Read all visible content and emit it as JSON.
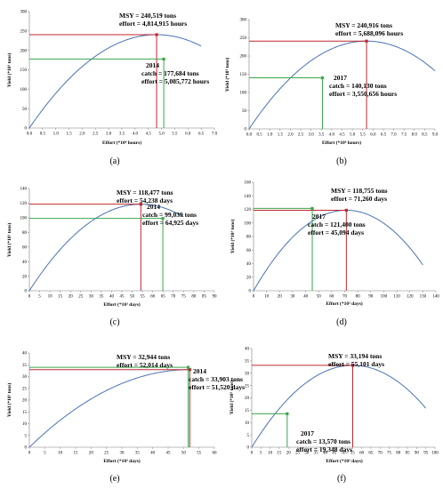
{
  "chart_data": [
    {
      "id": "a",
      "type": "line",
      "panel_label": "(a)",
      "xlabel": "Effort (*10⁶ hours)",
      "ylabel": "Yield (*10³ tons)",
      "xlim": [
        0,
        7.0
      ],
      "ylim": [
        0,
        300
      ],
      "xticks": [
        0,
        0.5,
        1,
        1.5,
        2,
        2.5,
        3,
        3.5,
        4,
        4.5,
        5,
        5.5,
        6,
        6.5,
        7
      ],
      "xtick_labels": [
        "0.0",
        "0.5",
        "1.0",
        "1.5",
        "2.0",
        "2.5",
        "3.0",
        "3.5",
        "4.0",
        "4.5",
        "5.0",
        "5.5",
        "6.0",
        "6.5",
        "7.0"
      ],
      "yticks": [
        0,
        50,
        100,
        150,
        200,
        250,
        300
      ],
      "ytick_labels": [
        "0",
        "50",
        "100",
        "150",
        "200",
        "250",
        "300"
      ],
      "curve": {
        "msy": 240.519,
        "emsy": 4.814915,
        "xmax": 6.5
      },
      "msy_point": {
        "x": 4.814915,
        "y": 240.519
      },
      "obs_point": {
        "x": 5.085772,
        "y": 177.684
      },
      "msy_lines": [
        "MSY = 240,519 tons",
        "effort = 4,814,915 hours"
      ],
      "obs_year": "2014",
      "obs_lines": [
        "catch = 177,684 tons",
        "effort = 5,085,772 hours"
      ]
    },
    {
      "id": "b",
      "type": "line",
      "panel_label": "(b)",
      "xlabel": "Effort (*10⁶ hours)",
      "ylabel": "Yield (*10³ tons)",
      "xlim": [
        0,
        9.0
      ],
      "ylim": [
        0,
        300
      ],
      "xticks": [
        0,
        0.5,
        1,
        1.5,
        2,
        2.5,
        3,
        3.5,
        4,
        4.5,
        5,
        5.5,
        6,
        6.5,
        7,
        7.5,
        8,
        8.5,
        9
      ],
      "xtick_labels": [
        "0.0",
        "0.5",
        "1.0",
        "1.5",
        "2.0",
        "2.5",
        "3.0",
        "3.5",
        "4.0",
        "4.5",
        "5.0",
        "5.5",
        "6.0",
        "6.5",
        "7.0",
        "7.5",
        "8.0",
        "8.5",
        "9.0"
      ],
      "yticks": [
        0,
        50,
        100,
        150,
        200,
        250,
        300
      ],
      "ytick_labels": [
        "0",
        "50",
        "100",
        "150",
        "200",
        "250",
        "300"
      ],
      "curve": {
        "msy": 240.916,
        "emsy": 5.688096,
        "xmax": 9.0
      },
      "msy_point": {
        "x": 5.688096,
        "y": 240.916
      },
      "obs_point": {
        "x": 3.550656,
        "y": 140.13
      },
      "msy_lines": [
        "MSY = 240,916 tons",
        "effort = 5,688,096 hours"
      ],
      "obs_year": "2017",
      "obs_lines": [
        "catch = 140,130 tons",
        "effort = 3,550,656 hours"
      ]
    },
    {
      "id": "c",
      "type": "line",
      "panel_label": "(c)",
      "xlabel": "Effort (*10³ days)",
      "ylabel": "Yield (*10³ tons)",
      "xlim": [
        0,
        90
      ],
      "ylim": [
        0,
        140
      ],
      "xticks": [
        0,
        5,
        10,
        15,
        20,
        25,
        30,
        35,
        40,
        45,
        50,
        55,
        60,
        65,
        70,
        75,
        80,
        85,
        90
      ],
      "xtick_labels": [
        "0",
        "5",
        "10",
        "15",
        "20",
        "25",
        "30",
        "35",
        "40",
        "45",
        "50",
        "55",
        "60",
        "65",
        "70",
        "75",
        "80",
        "85",
        "90"
      ],
      "yticks": [
        0,
        20,
        40,
        60,
        80,
        100,
        120,
        140
      ],
      "ytick_labels": [
        "0",
        "20",
        "40",
        "60",
        "80",
        "100",
        "120",
        "140"
      ],
      "curve": {
        "msy": 118.477,
        "emsy": 54.238,
        "xmax": 75
      },
      "msy_point": {
        "x": 54.238,
        "y": 118.477
      },
      "obs_point": {
        "x": 64.925,
        "y": 99.039
      },
      "msy_lines": [
        "MSY = 118,477 tons",
        "effort = 54,238 days"
      ],
      "obs_year": "2014",
      "obs_lines": [
        "catch = 99,039 tons",
        "effort = 64,925 days"
      ]
    },
    {
      "id": "d",
      "type": "line",
      "panel_label": "(d)",
      "xlabel": "Effort (*10³ days)",
      "ylabel": "Yield (*10³ tons)",
      "xlim": [
        0,
        140
      ],
      "ylim": [
        0,
        160
      ],
      "xticks": [
        0,
        10,
        20,
        30,
        40,
        50,
        60,
        70,
        80,
        90,
        100,
        110,
        120,
        130,
        140
      ],
      "xtick_labels": [
        "0",
        "10",
        "20",
        "30",
        "40",
        "50",
        "60",
        "70",
        "80",
        "90",
        "100",
        "110",
        "120",
        "130",
        "140"
      ],
      "yticks": [
        0,
        20,
        40,
        60,
        80,
        100,
        120,
        140,
        160
      ],
      "ytick_labels": [
        "0",
        "20",
        "40",
        "60",
        "80",
        "100",
        "120",
        "140",
        "160"
      ],
      "curve": {
        "msy": 118.755,
        "emsy": 71.26,
        "xmax": 130
      },
      "msy_point": {
        "x": 71.26,
        "y": 118.755
      },
      "obs_point": {
        "x": 45.094,
        "y": 121.4
      },
      "msy_lines": [
        "MSY = 118,755 tons",
        "effort = 71,260 days"
      ],
      "obs_year": "2017",
      "obs_lines": [
        "catch = 121,400 tons",
        "effort = 45,094 days"
      ]
    },
    {
      "id": "e",
      "type": "line",
      "panel_label": "(e)",
      "xlabel": "Effort (*10³ days)",
      "ylabel": "Yield (*10³ tons)",
      "xlim": [
        0,
        60
      ],
      "ylim": [
        0,
        40
      ],
      "xticks": [
        0,
        5,
        10,
        15,
        20,
        25,
        30,
        35,
        40,
        45,
        50,
        55,
        60
      ],
      "xtick_labels": [
        "0",
        "5",
        "10",
        "15",
        "20",
        "25",
        "30",
        "35",
        "40",
        "45",
        "50",
        "55",
        "60"
      ],
      "yticks": [
        0,
        5,
        10,
        15,
        20,
        25,
        30,
        35,
        40
      ],
      "ytick_labels": [
        "0",
        "5",
        "10",
        "15",
        "20",
        "25",
        "30",
        "35",
        "40"
      ],
      "curve": {
        "msy": 32.944,
        "emsy": 52.014,
        "xmax": 52.014
      },
      "msy_point": {
        "x": 52.014,
        "y": 32.944
      },
      "obs_point": {
        "x": 51.52,
        "y": 33.903
      },
      "msy_lines": [
        "MSY = 32,944 tons",
        "effort = 52,014 days"
      ],
      "obs_year": "2014",
      "obs_lines": [
        "catch = 33,903 tons",
        "effort = 51,520 days"
      ]
    },
    {
      "id": "f",
      "type": "line",
      "panel_label": "(f)",
      "xlabel": "Effort (*10³ days)",
      "ylabel": "Yield (*10³ tons)",
      "xlim": [
        0,
        100
      ],
      "ylim": [
        0,
        40
      ],
      "xticks": [
        0,
        5,
        10,
        15,
        20,
        25,
        30,
        35,
        40,
        45,
        50,
        55,
        60,
        65,
        70,
        75,
        80,
        85,
        90,
        95,
        100
      ],
      "xtick_labels": [
        "0",
        "5",
        "10",
        "15",
        "20",
        "25",
        "30",
        "35",
        "40",
        "45",
        "50",
        "55",
        "60",
        "65",
        "70",
        "75",
        "80",
        "85",
        "90",
        "95",
        "100"
      ],
      "yticks": [
        0,
        5,
        10,
        15,
        20,
        25,
        30,
        35,
        40
      ],
      "ytick_labels": [
        "0",
        "5",
        "10",
        "15",
        "20",
        "25",
        "30",
        "35",
        "40"
      ],
      "curve": {
        "msy": 33.194,
        "emsy": 55.101,
        "xmax": 95
      },
      "msy_point": {
        "x": 55.101,
        "y": 33.194
      },
      "obs_point": {
        "x": 19.348,
        "y": 13.57
      },
      "msy_lines": [
        "MSY = 33,194 tons",
        "effort = 55,101 days"
      ],
      "obs_year": "2017",
      "obs_lines": [
        "catch = 13,570 tons",
        "effort = 19,348 days"
      ]
    }
  ],
  "colors": {
    "curve": "#4a72b8",
    "msy": "#c0282d",
    "observed": "#3aa64a",
    "axis": "#7f7f7f",
    "grid": "#e5e5e5"
  }
}
